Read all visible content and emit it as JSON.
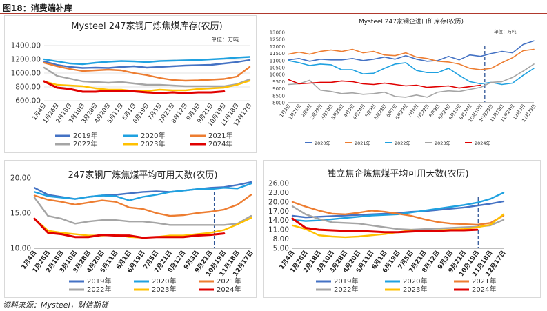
{
  "figure": {
    "title": "图18：消费端补库",
    "source": "资料来源：Mysteel，财信期货"
  },
  "chart_data": [
    {
      "type": "line",
      "title": "Mysteel 247家钢厂炼焦煤库存(农历)",
      "unit": "单位：万吨",
      "categories": [
        "1月4日",
        "1月26日",
        "2月18日",
        "3月10日",
        "3月28日",
        "4月20日",
        "5月11日",
        "6月1日",
        "6月19日",
        "7月5日",
        "7月21日",
        "8月12日",
        "9月3日",
        "9月21日",
        "10月19日",
        "11月18日",
        "12月17日"
      ],
      "ylim": [
        600,
        1400
      ],
      "yticks": [
        "1400.00",
        "1200.00",
        "1000.00",
        "800.00",
        "600.00"
      ],
      "tick_values": [
        1400,
        1200,
        1000,
        800,
        600
      ],
      "grid": true,
      "legend_position": "bottom",
      "series": [
        {
          "name": "2019年",
          "color": "#4472c4",
          "values": [
            1170,
            1120,
            1090,
            1075,
            1080,
            1075,
            1090,
            1100,
            1080,
            1090,
            1100,
            1110,
            1115,
            1120,
            1140,
            1160,
            1190
          ]
        },
        {
          "name": "2020年",
          "color": "#1fa1e0",
          "values": [
            1200,
            1170,
            1140,
            1130,
            1150,
            1165,
            1175,
            1170,
            1160,
            1175,
            1180,
            1185,
            1190,
            1200,
            1210,
            1225,
            1235
          ]
        },
        {
          "name": "2021年",
          "color": "#ed7d31",
          "values": [
            1150,
            1100,
            1060,
            1030,
            1040,
            1050,
            1040,
            1000,
            970,
            930,
            900,
            890,
            895,
            905,
            915,
            950,
            1090
          ]
        },
        {
          "name": "2022年",
          "color": "#a5a5a5",
          "values": [
            1080,
            960,
            920,
            880,
            870,
            860,
            870,
            850,
            830,
            830,
            820,
            810,
            810,
            810,
            810,
            840,
            910
          ]
        },
        {
          "name": "2023年",
          "color": "#ffc000",
          "values": [
            880,
            830,
            820,
            810,
            780,
            760,
            760,
            740,
            740,
            760,
            750,
            750,
            770,
            780,
            790,
            830,
            890
          ]
        },
        {
          "name": "2024年",
          "color": "#e00000",
          "values": [
            880,
            790,
            770,
            730,
            730,
            745,
            740,
            735,
            720,
            710,
            720,
            710,
            720,
            720,
            735,
            null,
            null
          ]
        }
      ]
    },
    {
      "type": "line",
      "title": "Mysteel 247家钢企进口矿库存(农历)",
      "unit": "单位：万吨",
      "categories": [
        "1月3日",
        "1月21日",
        "2月8日",
        "2月23日",
        "3月10日",
        "3月25日",
        "4月9日",
        "4月24日",
        "5月9日",
        "5月23日",
        "6月7日",
        "6月22日",
        "7月6日",
        "7月22日",
        "8月9日",
        "8月24日",
        "9月10日",
        "9月24日",
        "10月10日",
        "10月25日",
        "11月10日",
        "11月24日",
        "12月9日",
        "12月23日"
      ],
      "ylim": [
        8000,
        13000
      ],
      "tick_values": [
        13000,
        12500,
        12000,
        11500,
        11000,
        10500,
        10000,
        9500,
        9000,
        8500,
        8000
      ],
      "yticks": [
        "13000",
        "12500",
        "12000",
        "11500",
        "11000",
        "10500",
        "10000",
        "9500",
        "9000",
        "8500",
        "8000"
      ],
      "grid": false,
      "legend_position": "bottom",
      "series": [
        {
          "name": "2020年",
          "color": "#4472c4",
          "values": [
            11000,
            11100,
            10900,
            11050,
            11000,
            11000,
            11100,
            10950,
            11050,
            11200,
            11050,
            11300,
            11050,
            10900,
            10950,
            11250,
            11000,
            11350,
            11250,
            11450,
            11600,
            11500,
            12100,
            12350
          ]
        },
        {
          "name": "2021年",
          "color": "#ed7d31",
          "values": [
            11400,
            11550,
            11400,
            11600,
            11700,
            11600,
            11750,
            11500,
            11600,
            11350,
            11300,
            11500,
            11200,
            11100,
            10900,
            10850,
            10700,
            10400,
            10300,
            10400,
            10800,
            11150,
            11650,
            11750
          ]
        },
        {
          "name": "2022年",
          "color": "#1fa1e0",
          "values": [
            10950,
            10800,
            10600,
            10700,
            10650,
            10300,
            10300,
            10000,
            10050,
            10400,
            10700,
            10800,
            10250,
            10100,
            10100,
            10400,
            9900,
            9450,
            9300,
            9400,
            9250,
            9350,
            9900,
            10400
          ]
        },
        {
          "name": "2023年",
          "color": "#a5a5a5",
          "values": [
            9250,
            9300,
            9550,
            8850,
            8750,
            8600,
            8650,
            8550,
            8600,
            8700,
            8400,
            8350,
            8500,
            8350,
            8700,
            8800,
            8750,
            8900,
            9050,
            9400,
            9450,
            9750,
            10200,
            10700
          ]
        },
        {
          "name": "2024年",
          "color": "#e00000",
          "values": [
            9600,
            9300,
            9350,
            9400,
            9400,
            9500,
            9450,
            9300,
            9250,
            9350,
            9250,
            9150,
            9200,
            9050,
            9100,
            9150,
            9000,
            9100,
            9200,
            null,
            null,
            null,
            null,
            null
          ]
        }
      ]
    },
    {
      "type": "line",
      "title": "247家钢厂炼焦煤平均可用天数(农历)",
      "categories": [
        "1月4日",
        "1月26日",
        "2月18日",
        "3月10日",
        "3月28日",
        "4月20日",
        "5月11日",
        "6月1日",
        "6月19日",
        "7月5日",
        "7月21日",
        "8月12日",
        "9月3日",
        "9月21日",
        "10月19日",
        "11月18日",
        "12月17日"
      ],
      "ylim": [
        10,
        20
      ],
      "tick_values": [
        20,
        15,
        10
      ],
      "yticks": [
        "20.00",
        "15.00",
        "10.00"
      ],
      "grid": false,
      "legend_position": "bottom",
      "series": [
        {
          "name": "2019年",
          "color": "#4472c4",
          "values": [
            18.6,
            17.6,
            17.3,
            17.0,
            17.3,
            17.5,
            17.6,
            17.8,
            18.0,
            18.1,
            18.0,
            18.2,
            18.4,
            18.6,
            18.7,
            19.0,
            19.4
          ]
        },
        {
          "name": "2020年",
          "color": "#1fa1e0",
          "values": [
            18.0,
            17.4,
            17.2,
            17.0,
            17.3,
            17.5,
            17.4,
            16.8,
            17.3,
            17.6,
            18.0,
            18.2,
            18.4,
            18.4,
            18.6,
            18.5,
            19.2
          ]
        },
        {
          "name": "2021年",
          "color": "#ed7d31",
          "values": [
            17.5,
            16.9,
            16.6,
            16.2,
            16.5,
            16.8,
            16.6,
            15.8,
            15.6,
            15.0,
            14.6,
            14.7,
            15.0,
            15.2,
            15.5,
            16.2,
            17.6
          ]
        },
        {
          "name": "2022年",
          "color": "#a5a5a5",
          "values": [
            17.2,
            14.6,
            14.2,
            13.5,
            13.8,
            14.0,
            14.0,
            13.8,
            13.8,
            13.6,
            13.3,
            13.3,
            13.3,
            13.3,
            13.3,
            13.5,
            14.6
          ]
        },
        {
          "name": "2023年",
          "color": "#ffc000",
          "values": [
            14.2,
            12.5,
            12.2,
            12.0,
            11.8,
            11.8,
            11.9,
            11.6,
            11.5,
            11.6,
            11.8,
            11.8,
            12.0,
            12.2,
            12.6,
            13.4,
            14.3
          ]
        },
        {
          "name": "2024年",
          "color": "#e00000",
          "values": [
            14.2,
            12.2,
            12.0,
            11.6,
            11.6,
            11.9,
            11.8,
            11.8,
            11.5,
            11.6,
            11.6,
            11.6,
            11.8,
            11.9,
            12.1,
            null,
            null
          ]
        }
      ]
    },
    {
      "type": "line",
      "title": "独立焦企炼焦煤平均可用天数(农历)",
      "categories": [
        "1月4日",
        "1月26日",
        "2月18日",
        "3月10日",
        "3月28日",
        "4月20日",
        "5月11日",
        "6月1日",
        "6月19日",
        "7月5日",
        "7月21日",
        "8月12日",
        "9月3日",
        "9月21日",
        "10月19日",
        "11月18日",
        "12月17日"
      ],
      "ylim": [
        5,
        26
      ],
      "tick_values": [
        26,
        23,
        20,
        17,
        14,
        11,
        8,
        5
      ],
      "yticks": [
        "26.00",
        "23.00",
        "20.00",
        "17.00",
        "14.00",
        "11.00",
        "8.00",
        "5.00"
      ],
      "grid": false,
      "legend_position": "bottom",
      "series": [
        {
          "name": "2019年",
          "color": "#4472c4",
          "values": [
            15.5,
            15.0,
            15.2,
            15.4,
            15.6,
            15.8,
            16.0,
            16.2,
            16.4,
            16.8,
            17.0,
            17.4,
            17.8,
            18.2,
            18.8,
            19.4,
            20.2
          ]
        },
        {
          "name": "2020年",
          "color": "#1fa1e0",
          "values": [
            14.2,
            13.8,
            14.0,
            14.4,
            14.8,
            15.2,
            15.6,
            15.8,
            16.0,
            16.6,
            17.2,
            17.8,
            18.4,
            19.0,
            19.8,
            21.0,
            23.0
          ]
        },
        {
          "name": "2021年",
          "color": "#ed7d31",
          "values": [
            20.0,
            18.5,
            17.2,
            16.2,
            16.0,
            16.5,
            17.2,
            16.8,
            16.2,
            15.5,
            14.4,
            13.5,
            13.0,
            12.8,
            12.6,
            13.2,
            15.6
          ]
        },
        {
          "name": "2022年",
          "color": "#a5a5a5",
          "values": [
            18.6,
            16.0,
            14.5,
            13.4,
            13.2,
            13.0,
            12.4,
            11.8,
            11.2,
            11.0,
            11.2,
            11.4,
            11.6,
            11.8,
            12.0,
            12.4,
            14.2
          ]
        },
        {
          "name": "2023年",
          "color": "#ffc000",
          "values": [
            12.4,
            11.2,
            9.2,
            8.8,
            8.6,
            8.8,
            9.2,
            9.6,
            10.2,
            10.8,
            10.6,
            10.8,
            11.0,
            11.2,
            11.8,
            12.6,
            16.0
          ]
        },
        {
          "name": "2024年",
          "color": "#e00000",
          "values": [
            14.6,
            11.6,
            11.0,
            10.8,
            10.6,
            10.6,
            10.4,
            10.2,
            10.2,
            10.4,
            10.6,
            10.6,
            10.8,
            10.8,
            11.0,
            null,
            null
          ]
        }
      ]
    }
  ]
}
